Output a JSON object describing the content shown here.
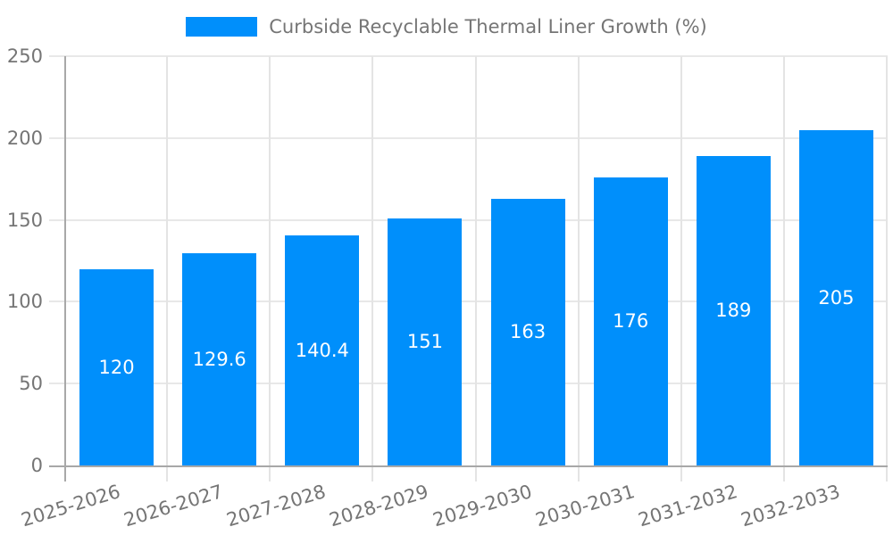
{
  "legend": {
    "label": "Curbside Recyclable Thermal Liner Growth (%)",
    "swatch_color": "#008FFB"
  },
  "chart_data": {
    "type": "bar",
    "title": "Curbside Recyclable Thermal Liner Growth (%)",
    "categories": [
      "2025-2026",
      "2026-2027",
      "2027-2028",
      "2028-2029",
      "2029-2030",
      "2030-2031",
      "2031-2032",
      "2032-2033"
    ],
    "values": [
      120,
      129.6,
      140.4,
      151,
      163,
      176,
      189,
      205
    ],
    "value_labels": [
      "120",
      "129.6",
      "140.4",
      "151",
      "163",
      "176",
      "189",
      "205"
    ],
    "xlabel": "",
    "ylabel": "",
    "ylim": [
      0,
      250
    ],
    "yticks": [
      0,
      50,
      100,
      150,
      200,
      250
    ],
    "grid": true,
    "legend_position": "top",
    "bar_color": "#008FFB",
    "value_label_color": "#ffffff",
    "axis_text_color": "#757575",
    "gridline_color": "#e8e8e8",
    "axis_line_color": "#a8a8a8"
  }
}
